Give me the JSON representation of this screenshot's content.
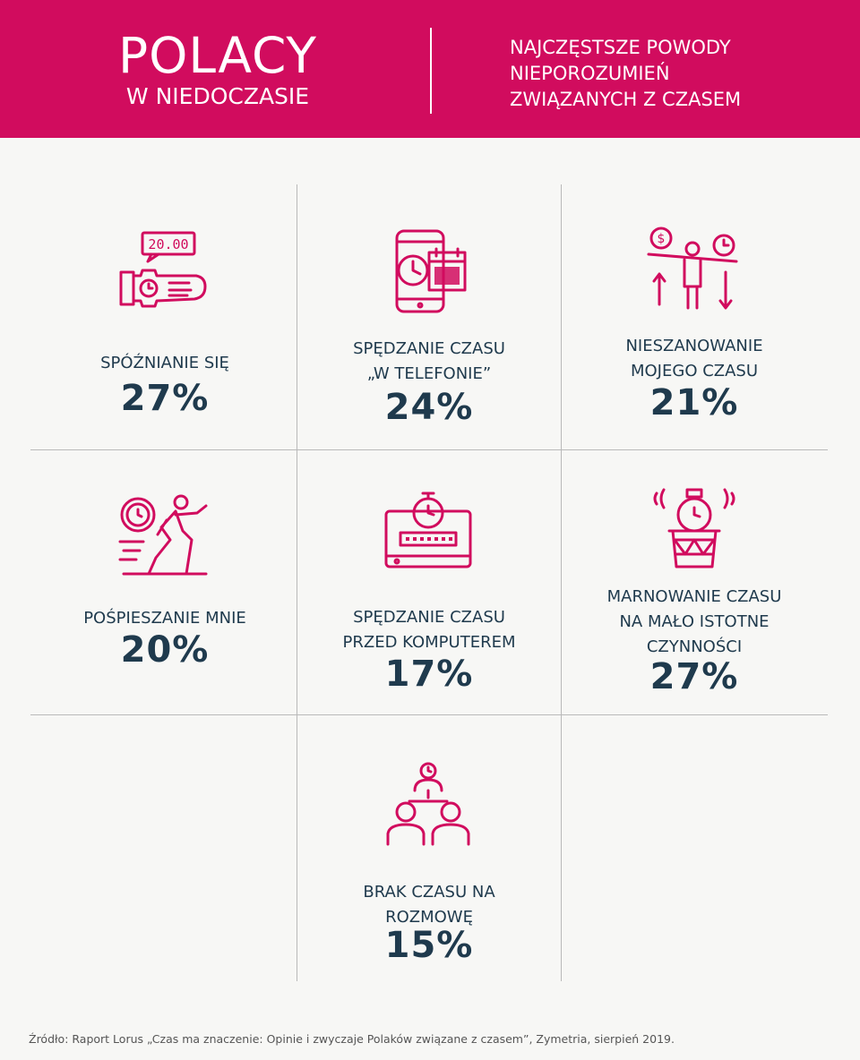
{
  "header": {
    "title": "POLACY",
    "subtitle": "W NIEDOCZASIE",
    "right_lines": [
      "NAJCZĘSTSZE POWODY",
      "NIEPOROZUMIEŃ",
      "ZWIĄZANYCH Z CZASEM"
    ]
  },
  "colors": {
    "accent": "#d10c5e",
    "text": "#1f3a4d",
    "background": "#f7f7f5"
  },
  "items": [
    {
      "label": "SPÓŹNIANIE SIĘ",
      "percent": "27%",
      "icon": "watch-wrist-icon",
      "clock_text": "20.00"
    },
    {
      "label": "SPĘDZANIE CZASU\n„W TELEFONIE”",
      "percent": "24%",
      "icon": "phone-calendar-icon"
    },
    {
      "label": "NIESZANOWANIE\nMOJEGO CZASU",
      "percent": "21%",
      "icon": "person-balance-icon",
      "coin_symbol": "$"
    },
    {
      "label": "POŚPIESZANIE MNIE",
      "percent": "20%",
      "icon": "running-man-clock-icon"
    },
    {
      "label": "SPĘDZANIE CZASU\nPRZED KOMPUTEREM",
      "percent": "17%",
      "icon": "computer-stopwatch-icon"
    },
    {
      "label": "MARNOWANIE CZASU\nNA MAŁO ISTOTNE\nCZYNNOŚCI",
      "percent": "27%",
      "icon": "trash-clock-icon"
    },
    {
      "label": "BRAK CZASU NA\nROZMOWĘ",
      "percent": "15%",
      "icon": "people-talk-clock-icon"
    }
  ],
  "source": "Źródło: Raport Lorus „Czas ma znaczenie: Opinie i zwyczaje Polaków związane z czasem”, Zymetria, sierpień 2019."
}
